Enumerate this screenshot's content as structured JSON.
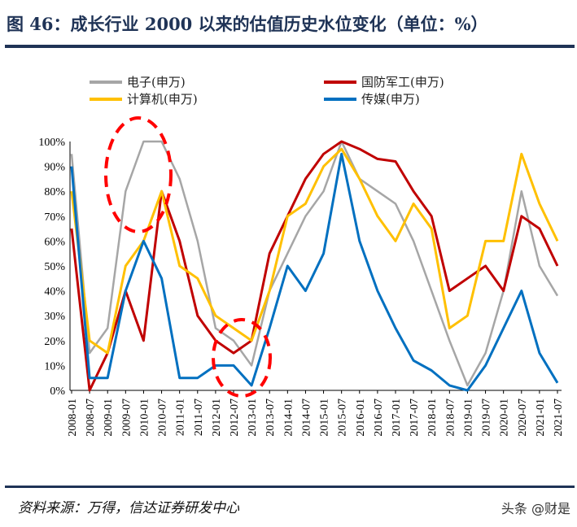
{
  "title": "图 46：成长行业 2000 以来的估值历史水位变化（单位：%）",
  "source": "资料来源：万得，信达证券研发中心",
  "watermark": "头条 @财是",
  "chart_data": {
    "type": "line",
    "x": [
      "2008-01",
      "2008-07",
      "2009-01",
      "2009-07",
      "2010-01",
      "2010-07",
      "2011-01",
      "2011-07",
      "2012-01",
      "2012-07",
      "2013-01",
      "2013-07",
      "2014-01",
      "2014-07",
      "2015-01",
      "2015-07",
      "2016-01",
      "2016-07",
      "2017-01",
      "2017-07",
      "2018-01",
      "2018-07",
      "2019-01",
      "2019-07",
      "2020-01",
      "2020-07",
      "2021-01",
      "2021-07"
    ],
    "ylim": [
      0,
      100
    ],
    "yticks": [
      "0%",
      "10%",
      "20%",
      "30%",
      "40%",
      "50%",
      "60%",
      "70%",
      "80%",
      "90%",
      "100%"
    ],
    "grid": false,
    "legend_position": "top",
    "series": [
      {
        "name": "电子(申万)",
        "color": "#a6a6a6",
        "values": [
          95,
          15,
          25,
          80,
          100,
          100,
          85,
          60,
          25,
          20,
          10,
          40,
          55,
          70,
          80,
          100,
          85,
          80,
          75,
          60,
          40,
          20,
          2,
          15,
          40,
          80,
          50,
          38
        ]
      },
      {
        "name": "国防军工(申万)",
        "color": "#c00000",
        "values": [
          65,
          0,
          15,
          40,
          20,
          80,
          60,
          30,
          20,
          15,
          20,
          55,
          70,
          85,
          95,
          100,
          97,
          93,
          92,
          80,
          70,
          40,
          45,
          50,
          40,
          70,
          65,
          50
        ]
      },
      {
        "name": "计算机(申万)",
        "color": "#ffc000",
        "values": [
          80,
          20,
          15,
          50,
          60,
          80,
          50,
          45,
          30,
          25,
          20,
          40,
          70,
          75,
          90,
          97,
          85,
          70,
          60,
          75,
          65,
          25,
          30,
          60,
          60,
          95,
          75,
          60
        ]
      },
      {
        "name": "传媒(申万)",
        "color": "#0070c0",
        "values": [
          90,
          5,
          5,
          40,
          60,
          45,
          5,
          5,
          10,
          10,
          2,
          25,
          50,
          40,
          55,
          95,
          60,
          40,
          25,
          12,
          8,
          2,
          0,
          10,
          25,
          40,
          15,
          3
        ]
      }
    ],
    "annotations": [
      {
        "type": "dashed-ellipse",
        "color": "#ff0000",
        "around": [
          "2009-07",
          "2010-07"
        ]
      },
      {
        "type": "dashed-ellipse",
        "color": "#ff0000",
        "around": [
          "2012-07",
          "2013-01"
        ]
      }
    ]
  }
}
